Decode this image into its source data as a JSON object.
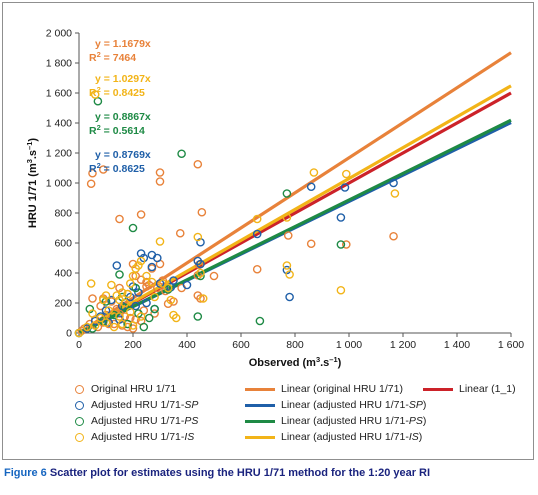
{
  "caption": {
    "figure_number": "Figure 6",
    "text": " Scatter plot for estimates using the HRU 1/71 method for the 1:20 year RI"
  },
  "chart_data": {
    "type": "scatter",
    "xlabel": "Observed (m3.s-1)",
    "ylabel": "HRU 1/71 (m3.s-1)",
    "xlim": [
      0,
      1600
    ],
    "ylim": [
      0,
      2000
    ],
    "x_ticks": [
      "0",
      "200",
      "400",
      "600",
      "800",
      "1 000",
      "1 200",
      "1 400",
      "1 600"
    ],
    "y_ticks": [
      "0",
      "200",
      "400",
      "600",
      "800",
      "1 000",
      "1 200",
      "1 400",
      "1 600",
      "1 800",
      "2 000"
    ],
    "grid": false,
    "colors": {
      "original": "#e8823a",
      "sp": "#1f5fa8",
      "ps": "#1e8a45",
      "is": "#f2b418",
      "one_to_one": "#cc2229"
    },
    "equations": [
      {
        "key": "original",
        "eq": "y = 1.1679x",
        "r2": "R2 = 7464",
        "slope": 1.1679
      },
      {
        "key": "is",
        "eq": "y = 1.0297x",
        "r2": "R2 = 0.8425",
        "slope": 1.0297
      },
      {
        "key": "ps",
        "eq": "y = 0.8867x",
        "r2": "R2 = 0.5614",
        "slope": 0.8867
      },
      {
        "key": "sp",
        "eq": "y = 0.8769x",
        "r2": "R2 = 0.8625",
        "slope": 0.8769
      }
    ],
    "trend_lines": [
      {
        "key": "one_to_one",
        "slope": 1.0
      },
      {
        "key": "original",
        "slope": 1.1679
      },
      {
        "key": "is",
        "slope": 1.0297
      },
      {
        "key": "sp",
        "slope": 0.8769
      },
      {
        "key": "ps",
        "slope": 0.8867
      }
    ],
    "series": [
      {
        "key": "original",
        "points": [
          [
            45,
            995
          ],
          [
            50,
            1065
          ],
          [
            90,
            1090
          ],
          [
            300,
            1070
          ],
          [
            300,
            1010
          ],
          [
            440,
            1125
          ],
          [
            150,
            760
          ],
          [
            230,
            790
          ],
          [
            455,
            805
          ],
          [
            375,
            665
          ],
          [
            300,
            460
          ],
          [
            200,
            460
          ],
          [
            210,
            380
          ],
          [
            230,
            355
          ],
          [
            250,
            340
          ],
          [
            310,
            350
          ],
          [
            260,
            320
          ],
          [
            290,
            300
          ],
          [
            350,
            210
          ],
          [
            330,
            195
          ],
          [
            270,
            430
          ],
          [
            445,
            455
          ],
          [
            450,
            460
          ],
          [
            440,
            385
          ],
          [
            500,
            380
          ],
          [
            440,
            250
          ],
          [
            450,
            230
          ],
          [
            660,
            425
          ],
          [
            775,
            650
          ],
          [
            860,
            595
          ],
          [
            990,
            590
          ],
          [
            1165,
            645
          ],
          [
            50,
            230
          ],
          [
            80,
            180
          ],
          [
            90,
            230
          ],
          [
            120,
            210
          ],
          [
            140,
            160
          ],
          [
            150,
            130
          ],
          [
            170,
            110
          ],
          [
            190,
            100
          ],
          [
            210,
            90
          ],
          [
            230,
            80
          ],
          [
            100,
            120
          ],
          [
            60,
            90
          ],
          [
            40,
            60
          ],
          [
            20,
            30
          ],
          [
            10,
            15
          ],
          [
            110,
            60
          ],
          [
            130,
            60
          ],
          [
            160,
            50
          ],
          [
            180,
            40
          ],
          [
            200,
            30
          ],
          [
            240,
            150
          ],
          [
            280,
            130
          ],
          [
            150,
            300
          ],
          [
            180,
            260
          ],
          [
            250,
            310
          ],
          [
            320,
            280
          ],
          [
            380,
            300
          ],
          [
            90,
            70
          ],
          [
            70,
            40
          ]
        ]
      },
      {
        "key": "sp",
        "points": [
          [
            0,
            0
          ],
          [
            30,
            30
          ],
          [
            60,
            80
          ],
          [
            100,
            150
          ],
          [
            140,
            450
          ],
          [
            160,
            180
          ],
          [
            190,
            240
          ],
          [
            200,
            310
          ],
          [
            220,
            270
          ],
          [
            230,
            530
          ],
          [
            270,
            520
          ],
          [
            240,
            500
          ],
          [
            290,
            500
          ],
          [
            270,
            440
          ],
          [
            300,
            330
          ],
          [
            340,
            305
          ],
          [
            350,
            350
          ],
          [
            400,
            320
          ],
          [
            440,
            480
          ],
          [
            450,
            460
          ],
          [
            450,
            605
          ],
          [
            660,
            660
          ],
          [
            770,
            420
          ],
          [
            780,
            240
          ],
          [
            860,
            975
          ],
          [
            970,
            770
          ],
          [
            985,
            970
          ],
          [
            1165,
            1000
          ],
          [
            120,
            220
          ],
          [
            210,
            180
          ],
          [
            250,
            200
          ],
          [
            280,
            160
          ],
          [
            80,
            110
          ],
          [
            110,
            70
          ],
          [
            150,
            90
          ]
        ]
      },
      {
        "key": "ps",
        "points": [
          [
            0,
            0
          ],
          [
            50,
            30
          ],
          [
            70,
            1545
          ],
          [
            100,
            210
          ],
          [
            130,
            120
          ],
          [
            150,
            390
          ],
          [
            160,
            240
          ],
          [
            170,
            170
          ],
          [
            200,
            700
          ],
          [
            210,
            300
          ],
          [
            220,
            130
          ],
          [
            240,
            40
          ],
          [
            260,
            100
          ],
          [
            280,
            160
          ],
          [
            330,
            290
          ],
          [
            380,
            1195
          ],
          [
            440,
            110
          ],
          [
            450,
            380
          ],
          [
            670,
            80
          ],
          [
            770,
            930
          ],
          [
            970,
            590
          ],
          [
            40,
            160
          ],
          [
            90,
            80
          ],
          [
            180,
            60
          ]
        ]
      },
      {
        "key": "is",
        "points": [
          [
            0,
            0
          ],
          [
            30,
            40
          ],
          [
            45,
            330
          ],
          [
            50,
            130
          ],
          [
            60,
            1590
          ],
          [
            80,
            100
          ],
          [
            100,
            250
          ],
          [
            120,
            320
          ],
          [
            140,
            250
          ],
          [
            150,
            220
          ],
          [
            160,
            270
          ],
          [
            170,
            200
          ],
          [
            180,
            260
          ],
          [
            190,
            330
          ],
          [
            200,
            380
          ],
          [
            210,
            430
          ],
          [
            220,
            450
          ],
          [
            230,
            480
          ],
          [
            250,
            380
          ],
          [
            270,
            340
          ],
          [
            300,
            610
          ],
          [
            310,
            330
          ],
          [
            330,
            300
          ],
          [
            340,
            220
          ],
          [
            350,
            120
          ],
          [
            360,
            100
          ],
          [
            440,
            640
          ],
          [
            450,
            400
          ],
          [
            460,
            230
          ],
          [
            660,
            760
          ],
          [
            770,
            450
          ],
          [
            770,
            770
          ],
          [
            780,
            390
          ],
          [
            870,
            1070
          ],
          [
            970,
            285
          ],
          [
            990,
            1060
          ],
          [
            1170,
            930
          ],
          [
            60,
            50
          ],
          [
            100,
            70
          ],
          [
            130,
            40
          ],
          [
            160,
            60
          ],
          [
            200,
            50
          ],
          [
            110,
            150
          ],
          [
            150,
            110
          ],
          [
            190,
            140
          ],
          [
            230,
            110
          ],
          [
            280,
            240
          ],
          [
            90,
            220
          ]
        ]
      }
    ],
    "legend": [
      {
        "kind": "marker",
        "key": "original",
        "label": "Original HRU 1/71"
      },
      {
        "kind": "line",
        "key": "original",
        "label": "Linear (original HRU 1/71)"
      },
      {
        "kind": "line",
        "key": "one_to_one",
        "label": "Linear (1_1)"
      },
      {
        "kind": "marker",
        "key": "sp",
        "label": "Adjusted HRU 1/71-",
        "label_italic": "SP"
      },
      {
        "kind": "line",
        "key": "sp",
        "label": "Linear (adjusted HRU 1/71-",
        "label_italic": "SP",
        "label_end": ")"
      },
      {
        "kind": "marker",
        "key": "ps",
        "label": "Adjusted HRU 1/71-",
        "label_italic": "PS"
      },
      {
        "kind": "line",
        "key": "ps",
        "label": "Linear (adjusted HRU 1/71-",
        "label_italic": "PS",
        "label_end": ")"
      },
      {
        "kind": "marker",
        "key": "is",
        "label": "Adjusted HRU 1/71-",
        "label_italic": "IS"
      },
      {
        "kind": "line",
        "key": "is",
        "label": "Linear (adjusted HRU 1/71-",
        "label_italic": "IS",
        "label_end": ")"
      }
    ]
  }
}
